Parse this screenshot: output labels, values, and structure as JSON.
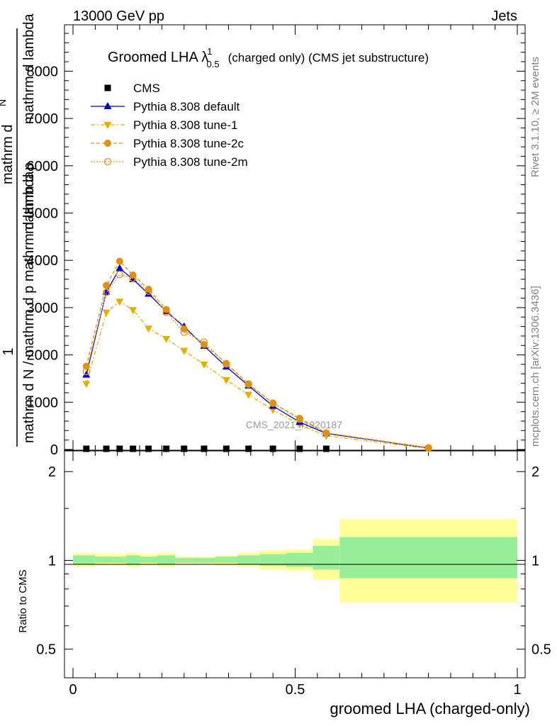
{
  "header": {
    "left": "13000 GeV pp",
    "right": "Jets"
  },
  "side_labels": {
    "rivet": "Rivet 3.1.10, ≥ 2M events",
    "mcplots": "mcplots.cern.ch [arXiv:1306.3436]"
  },
  "watermark": "CMS_2021_I1920187",
  "title": {
    "main": "Groomed LHA λ",
    "sup": "1",
    "sub": "0.5",
    "tail": "(charged only) (CMS jet substructure)"
  },
  "ylabel_main": {
    "one": "1",
    "num1": "mathrm d",
    "num2": "N",
    "num3": "mathrm d p",
    "num4": "mathrm d lambda",
    "den": "mathrm d N / mathrm d p mathrm d lambda"
  },
  "ylabel_ratio": "Ratio to CMS",
  "xlabel": "groomed LHA (charged-only)",
  "colors": {
    "cms": "#000000",
    "default": "#0000cc",
    "tune1": "#e0b000",
    "tune2c": "#e09010",
    "tune2m": "#e09a30",
    "band_inner": "#99ee99",
    "band_outer": "#ffff99"
  },
  "chart_data": {
    "type": "line",
    "xlim": [
      0,
      1
    ],
    "ylim": [
      0,
      9000
    ],
    "xticks": [
      0,
      0.5,
      1
    ],
    "xtick_labels": [
      "0",
      "0.5",
      "1"
    ],
    "yticks": [
      0,
      1000,
      2000,
      3000,
      4000,
      5000,
      6000,
      7000,
      8000
    ],
    "ytick_labels": [
      "0",
      "1000",
      "2000",
      "3000",
      "4000",
      "5000",
      "6000",
      "7000",
      "8000"
    ],
    "legend_position": "top-left",
    "series": [
      {
        "name": "CMS",
        "style": "square",
        "x": [
          0.03,
          0.075,
          0.105,
          0.135,
          0.17,
          0.21,
          0.25,
          0.295,
          0.345,
          0.395,
          0.45,
          0.51,
          0.57
        ],
        "y": [
          0,
          0,
          0,
          0,
          0,
          0,
          0,
          0,
          0,
          0,
          0,
          0,
          0
        ]
      },
      {
        "name": "Pythia 8.308 default",
        "style": "default",
        "x": [
          0.03,
          0.075,
          0.105,
          0.135,
          0.17,
          0.21,
          0.25,
          0.295,
          0.345,
          0.395,
          0.45,
          0.51,
          0.57,
          0.8
        ],
        "y": [
          1580,
          3330,
          3830,
          3600,
          3290,
          2920,
          2600,
          2190,
          1750,
          1350,
          920,
          580,
          340,
          30
        ]
      },
      {
        "name": "Pythia 8.308 tune-1",
        "style": "tune1",
        "x": [
          0.03,
          0.075,
          0.105,
          0.135,
          0.17,
          0.21,
          0.25,
          0.295,
          0.345,
          0.395,
          0.45,
          0.51,
          0.57,
          0.8
        ],
        "y": [
          1390,
          2900,
          3130,
          2950,
          2560,
          2340,
          2090,
          1800,
          1470,
          1160,
          840,
          530,
          290,
          20
        ]
      },
      {
        "name": "Pythia 8.308 tune-2c",
        "style": "tune2c",
        "x": [
          0.03,
          0.075,
          0.105,
          0.135,
          0.17,
          0.21,
          0.25,
          0.295,
          0.345,
          0.395,
          0.45,
          0.51,
          0.57,
          0.8
        ],
        "y": [
          1760,
          3470,
          3980,
          3690,
          3390,
          2960,
          2550,
          2220,
          1820,
          1390,
          980,
          660,
          350,
          40
        ]
      },
      {
        "name": "Pythia 8.308 tune-2m",
        "style": "tune2m",
        "x": [
          0.03,
          0.075,
          0.105,
          0.135,
          0.17,
          0.21,
          0.25,
          0.295,
          0.345,
          0.395,
          0.45,
          0.51,
          0.57,
          0.8
        ],
        "y": [
          1650,
          3320,
          3700,
          3620,
          3350,
          2900,
          2480,
          2270,
          1810,
          1380,
          980,
          640,
          350,
          30
        ]
      }
    ],
    "ratio": {
      "ylim_log": [
        0.4,
        2.35
      ],
      "yticks": [
        0.5,
        1,
        2
      ],
      "ytick_labels": [
        "0.5",
        "1",
        "2"
      ],
      "bins": [
        [
          0.0,
          0.05,
          0.97,
          1.04,
          0.95,
          1.06
        ],
        [
          0.05,
          0.09,
          0.98,
          1.03,
          0.96,
          1.05
        ],
        [
          0.09,
          0.12,
          0.98,
          1.03,
          0.96,
          1.05
        ],
        [
          0.12,
          0.15,
          0.97,
          1.04,
          0.95,
          1.06
        ],
        [
          0.15,
          0.19,
          0.98,
          1.03,
          0.96,
          1.05
        ],
        [
          0.19,
          0.23,
          0.97,
          1.04,
          0.95,
          1.06
        ],
        [
          0.23,
          0.27,
          0.98,
          1.02,
          0.97,
          1.03
        ],
        [
          0.27,
          0.32,
          0.98,
          1.02,
          0.97,
          1.03
        ],
        [
          0.32,
          0.37,
          0.98,
          1.03,
          0.96,
          1.04
        ],
        [
          0.37,
          0.42,
          0.97,
          1.04,
          0.95,
          1.06
        ],
        [
          0.42,
          0.48,
          0.96,
          1.05,
          0.93,
          1.08
        ],
        [
          0.48,
          0.54,
          0.95,
          1.06,
          0.92,
          1.09
        ],
        [
          0.54,
          0.6,
          0.93,
          1.12,
          0.86,
          1.18
        ],
        [
          0.6,
          1.0,
          0.87,
          1.2,
          0.72,
          1.38
        ]
      ]
    }
  }
}
